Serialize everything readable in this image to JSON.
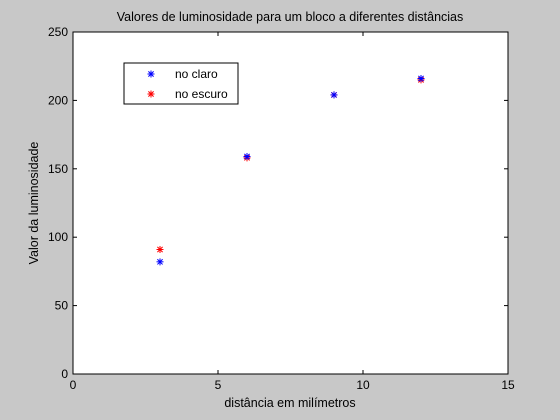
{
  "chart_data": {
    "type": "scatter",
    "title": "Valores de luminosidade para um bloco a diferentes distâncias",
    "xlabel": "distância em milímetros",
    "ylabel": "Valor da luminosidade",
    "xlim": [
      0,
      15
    ],
    "ylim": [
      0,
      250
    ],
    "xticks": [
      0,
      5,
      10,
      15
    ],
    "yticks": [
      0,
      50,
      100,
      150,
      200,
      250
    ],
    "grid": false,
    "legend_position": "top-left",
    "series": [
      {
        "name": "no claro",
        "color": "#0000ff",
        "marker": "*",
        "x": [
          3,
          6,
          9,
          12
        ],
        "y": [
          82,
          159,
          204,
          216
        ]
      },
      {
        "name": "no escuro",
        "color": "#ff0000",
        "marker": "*",
        "x": [
          3,
          6,
          9,
          12
        ],
        "y": [
          91,
          158,
          204,
          215
        ]
      }
    ]
  },
  "colors": {
    "figure_background": "#c8c8c8",
    "axes_background": "#ffffff"
  }
}
